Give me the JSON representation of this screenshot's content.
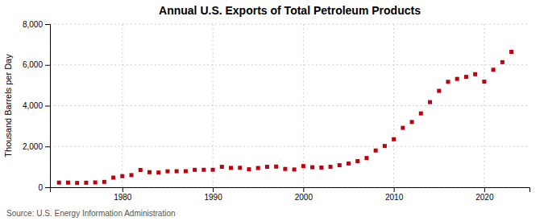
{
  "chart_data": {
    "type": "scatter",
    "title": "Annual U.S. Exports of Total Petroleum Products",
    "ylabel": "Thousand Barrels per Day",
    "annotations": [
      "Source: U.S. Energy Information Administration"
    ],
    "x": [
      1973,
      1974,
      1975,
      1976,
      1977,
      1978,
      1979,
      1980,
      1981,
      1982,
      1983,
      1984,
      1985,
      1986,
      1987,
      1988,
      1989,
      1990,
      1991,
      1992,
      1993,
      1994,
      1995,
      1996,
      1997,
      1998,
      1999,
      2000,
      2001,
      2002,
      2003,
      2004,
      2005,
      2006,
      2007,
      2008,
      2009,
      2010,
      2011,
      2012,
      2013,
      2014,
      2015,
      2016,
      2017,
      2018,
      2019,
      2020,
      2021,
      2022,
      2023
    ],
    "values": [
      228,
      228,
      210,
      223,
      236,
      263,
      471,
      544,
      596,
      847,
      739,
      722,
      781,
      785,
      786,
      855,
      857,
      857,
      1002,
      949,
      954,
      880,
      944,
      1002,
      1013,
      898,
      871,
      1038,
      981,
      966,
      1003,
      1080,
      1165,
      1281,
      1433,
      1802,
      2024,
      2353,
      2912,
      3200,
      3620,
      4174,
      4726,
      5170,
      5314,
      5413,
      5544,
      5178,
      5762,
      6134,
      6642
    ],
    "color": "#C0000A",
    "marker": "square",
    "xlim": [
      1972,
      2025
    ],
    "xticks": [
      1980,
      1990,
      2000,
      2010,
      2020
    ],
    "ylim": [
      0,
      8000
    ],
    "yticks": [
      0,
      {
        "value": 2000,
        "label": "2,000"
      },
      {
        "value": 4000,
        "label": "4,000"
      },
      {
        "value": 6000,
        "label": "6,000"
      },
      {
        "value": 8000,
        "label": "8,000"
      }
    ],
    "grid": true
  }
}
